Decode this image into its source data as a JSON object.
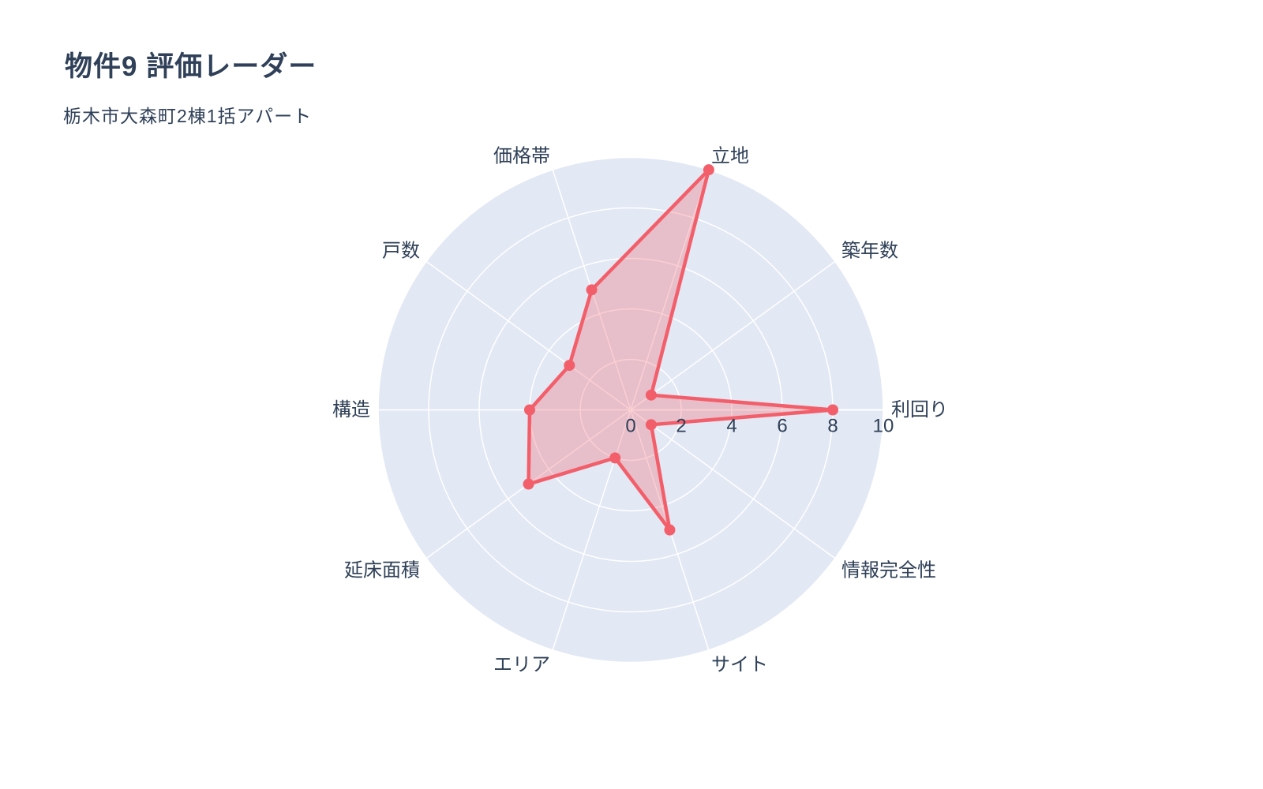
{
  "header": {
    "title": "物件9 評価レーダー",
    "subtitle": "栃木市大森町2棟1括アパート"
  },
  "chart_data": {
    "type": "radar",
    "categories": [
      "立地",
      "築年数",
      "利回り",
      "情報完全性",
      "サイト",
      "エリア",
      "延床面積",
      "構造",
      "戸数",
      "価格帯"
    ],
    "series": [
      {
        "name": "物件9",
        "values": [
          10,
          1,
          8,
          1,
          5,
          2,
          5,
          4,
          3,
          5
        ]
      }
    ],
    "radial_ticks": [
      0,
      2,
      4,
      6,
      8,
      10
    ],
    "range": [
      0,
      10
    ],
    "rotation_deg": 72,
    "direction": "clockwise",
    "grid": true,
    "legend": false,
    "colors": {
      "line": "#f25f6a",
      "fill": "#f25f6a",
      "fill_opacity": 0.3,
      "polar_bg": "#e2e8f4",
      "grid_line": "#ffffff",
      "text": "#2f4058",
      "page_bg": "#ffffff"
    }
  }
}
